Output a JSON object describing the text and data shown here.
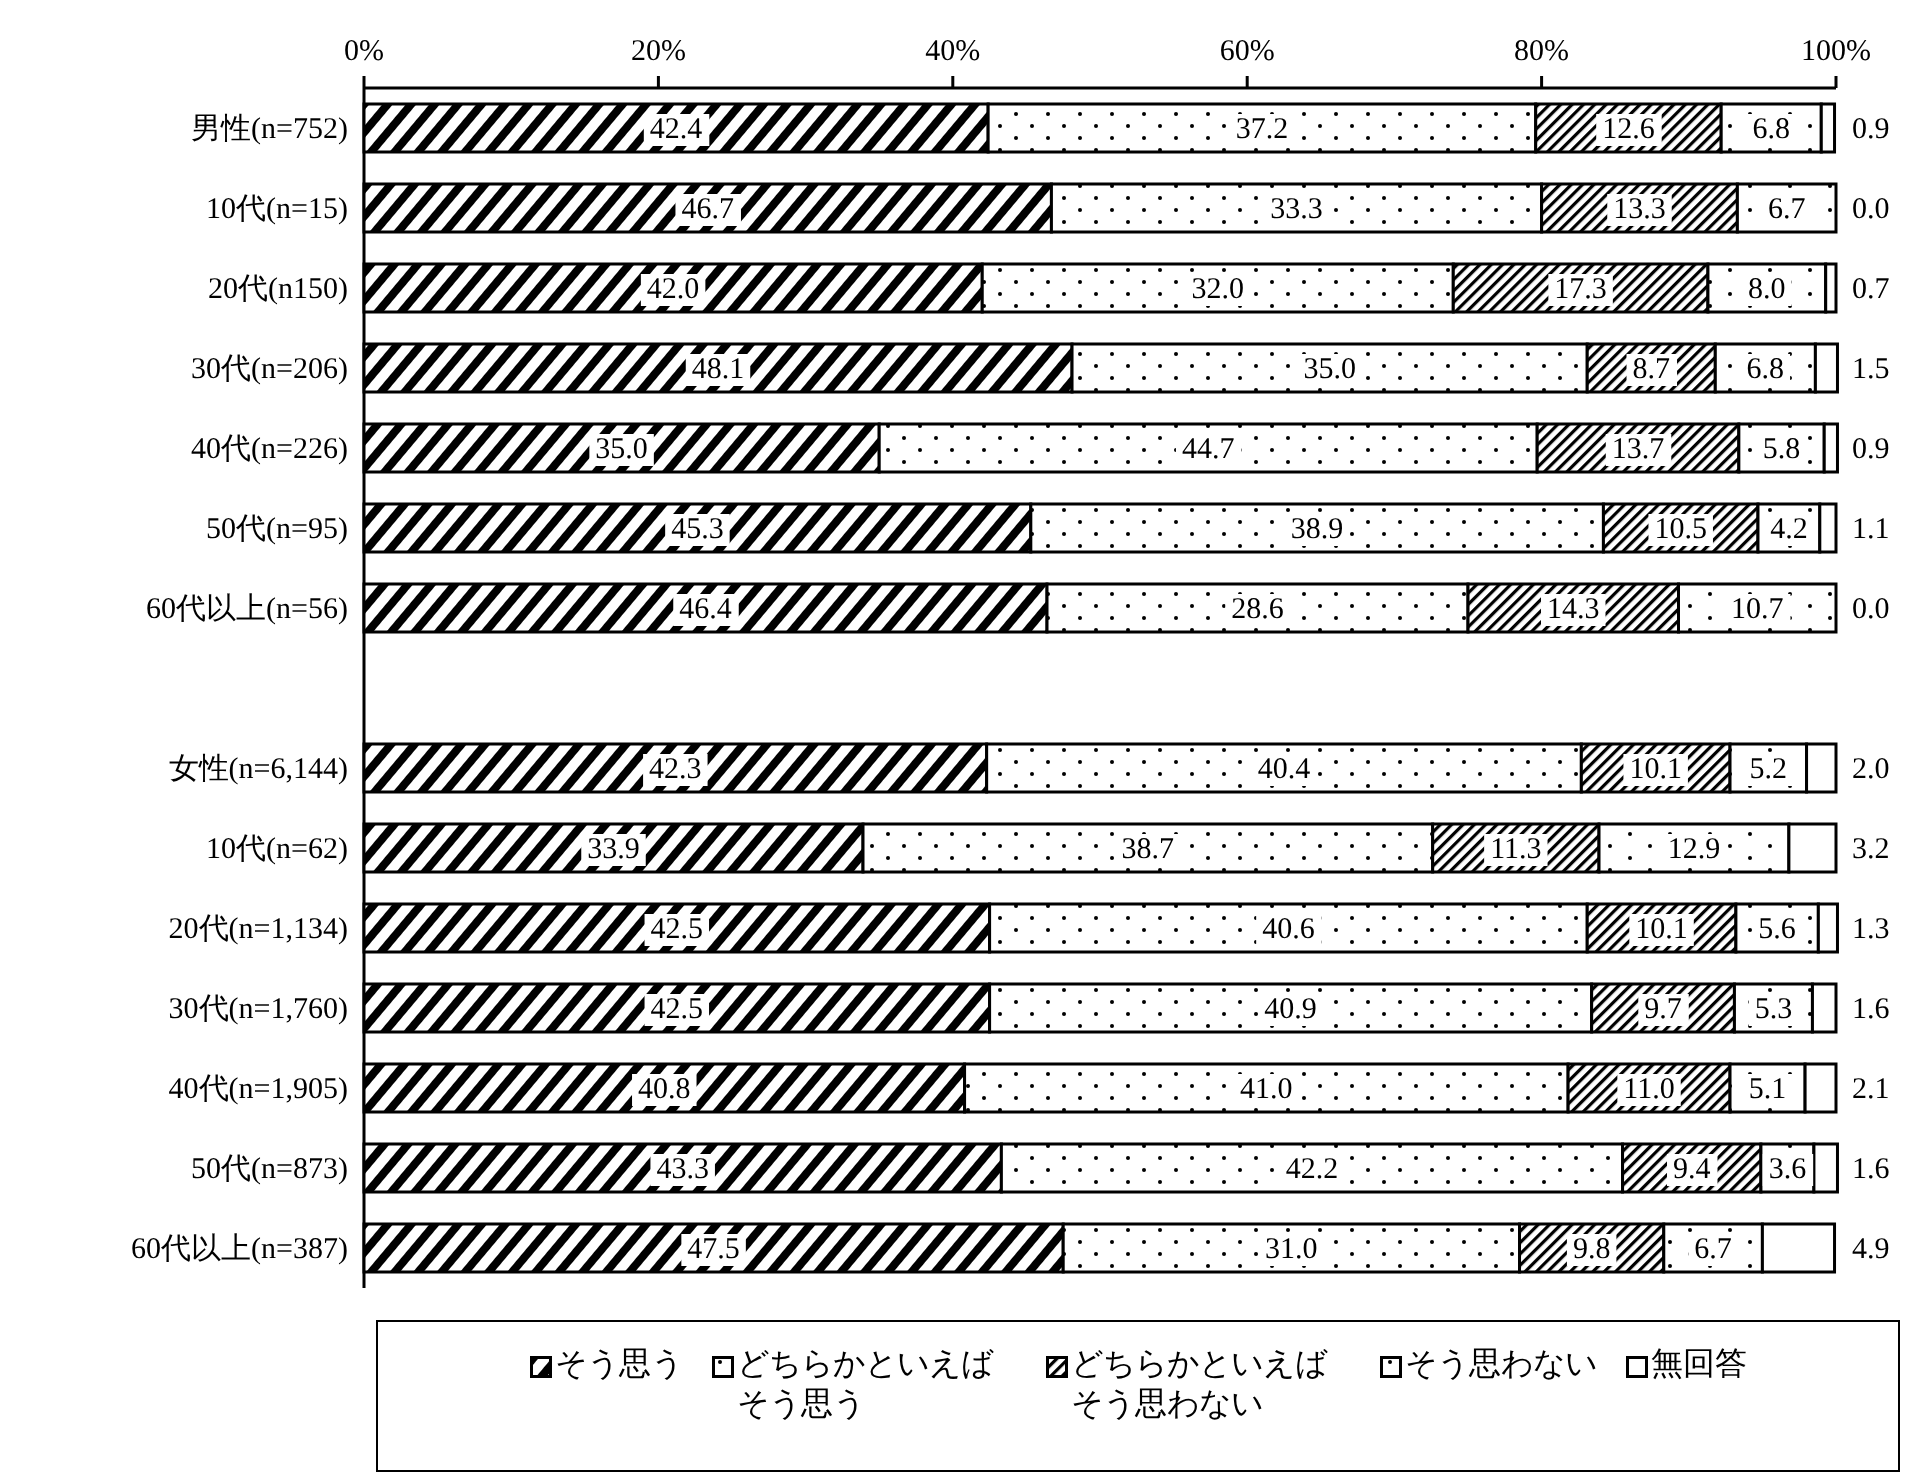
{
  "chart_data": {
    "type": "bar",
    "orientation": "horizontal",
    "stacked": true,
    "legend": "bottom",
    "categories": [
      "男性(n=752)",
      "10代(n=15)",
      "20代(n150)",
      "30代(n=206)",
      "40代(n=226)",
      "50代(n=95)",
      "60代以上(n=56)",
      null,
      "女性(n=6,144)",
      "10代(n=62)",
      "20代(n=1,134)",
      "30代(n=1,760)",
      "40代(n=1,905)",
      "50代(n=873)",
      "60代以上(n=387)"
    ],
    "xlim": [
      0,
      100
    ],
    "xticks": [
      {
        "value": 0,
        "label": "0%"
      },
      {
        "value": 20,
        "label": "20%"
      },
      {
        "value": 40,
        "label": "40%"
      },
      {
        "value": 60,
        "label": "60%"
      },
      {
        "value": 80,
        "label": "80%"
      },
      {
        "value": 100,
        "label": "100%"
      }
    ],
    "series": [
      {
        "name": "そう思う",
        "color": "#000000",
        "values": [
          42.4,
          46.7,
          42.0,
          48.1,
          35.0,
          45.3,
          46.4,
          null,
          42.3,
          33.9,
          42.5,
          42.5,
          40.8,
          43.3,
          47.5
        ],
        "value_labels": [
          "42.4",
          "46.7",
          "42.0",
          "48.1",
          "35.0",
          "45.3",
          "46.4",
          null,
          "42.3",
          "33.9",
          "42.5",
          "42.5",
          "40.8",
          "43.3",
          "47.5"
        ]
      },
      {
        "name": "どちらかといえばそう思う",
        "color": "#000000",
        "values": [
          37.2,
          33.3,
          32.0,
          35.0,
          44.7,
          38.9,
          28.6,
          null,
          40.4,
          38.7,
          40.6,
          40.9,
          41.0,
          42.2,
          31.0
        ],
        "value_labels": [
          "37.2",
          "33.3",
          "32.0",
          "35.0",
          "44.7",
          "38.9",
          "28.6",
          null,
          "40.4",
          "38.7",
          "40.6",
          "40.9",
          "41.0",
          "42.2",
          "31.0"
        ]
      },
      {
        "name": "どちらかといえばそう思わない",
        "color": "#000000",
        "values": [
          12.6,
          13.3,
          17.3,
          8.7,
          13.7,
          10.5,
          14.3,
          null,
          10.1,
          11.3,
          10.1,
          9.7,
          11.0,
          9.4,
          9.8
        ],
        "value_labels": [
          "12.6",
          "13.3",
          "17.3",
          "8.7",
          "13.7",
          "10.5",
          "14.3",
          null,
          "10.1",
          "11.3",
          "10.1",
          "9.7",
          "11.0",
          "9.4",
          "9.8"
        ]
      },
      {
        "name": "そう思わない",
        "color": "#000000",
        "values": [
          6.8,
          6.7,
          8.0,
          6.8,
          5.8,
          4.2,
          10.7,
          null,
          5.2,
          12.9,
          5.6,
          5.3,
          5.1,
          3.6,
          6.7
        ],
        "value_labels": [
          "6.8",
          "6.7",
          "8.0",
          "6.8",
          "5.8",
          "4.2",
          "10.7",
          null,
          "5.2",
          "12.9",
          "5.6",
          "5.3",
          "5.1",
          "3.6",
          "6.7"
        ]
      },
      {
        "name": "無回答",
        "color": "#000000",
        "values": [
          0.9,
          0.0,
          0.7,
          1.5,
          0.9,
          1.1,
          0.0,
          null,
          2.0,
          3.2,
          1.3,
          1.6,
          2.1,
          1.6,
          4.9
        ],
        "value_labels": [
          "0.9",
          "0.0",
          "0.7",
          "1.5",
          "0.9",
          "1.1",
          "0.0",
          null,
          "2.0",
          "3.2",
          "1.3",
          "1.6",
          "2.1",
          "1.6",
          "4.9"
        ]
      }
    ]
  }
}
